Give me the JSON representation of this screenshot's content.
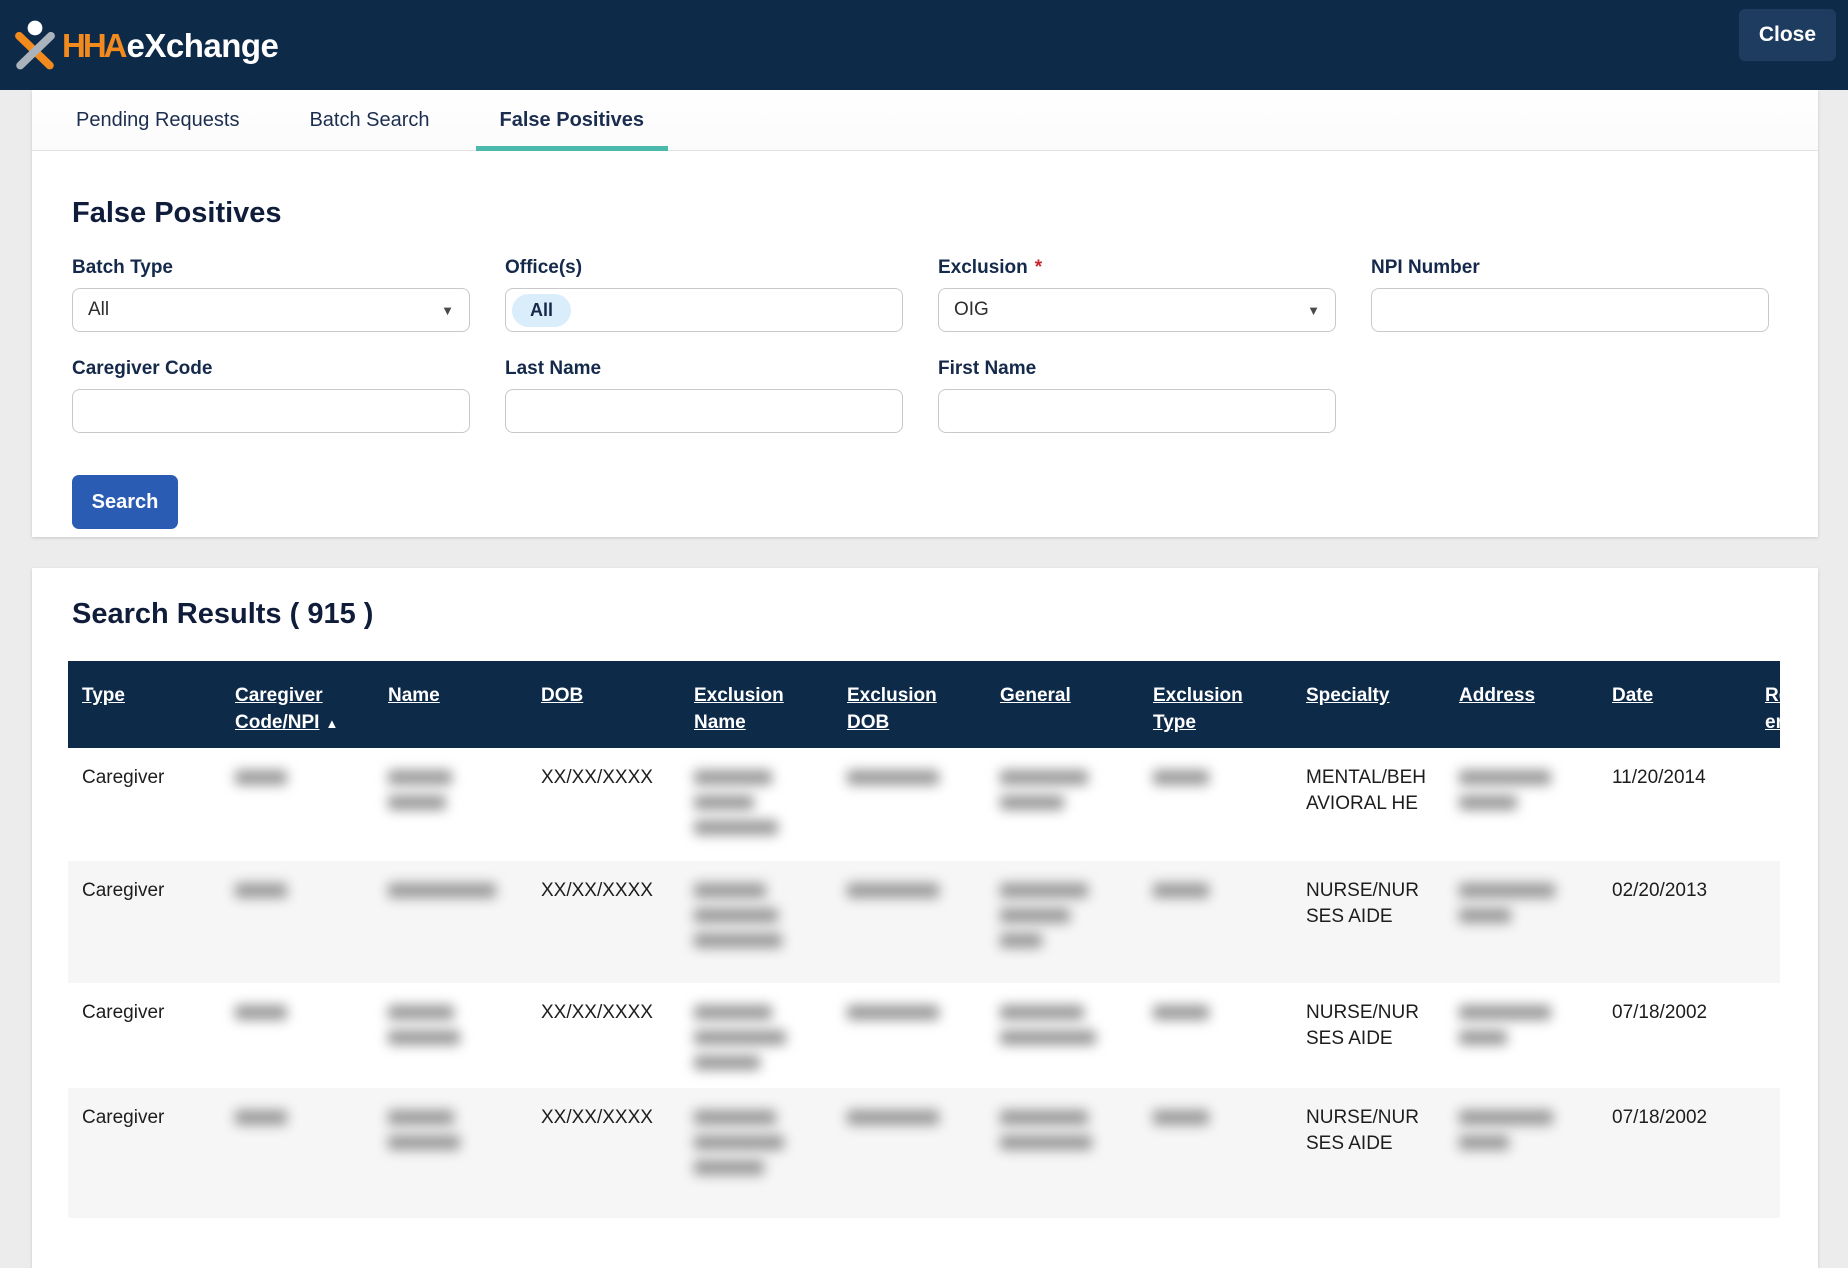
{
  "header": {
    "logo": {
      "hha": "HHA",
      "exchange": "eXchange"
    },
    "close_label": "Close"
  },
  "tabs": [
    {
      "label": "Pending Requests",
      "active": false
    },
    {
      "label": "Batch Search",
      "active": false
    },
    {
      "label": "False Positives",
      "active": true
    }
  ],
  "form": {
    "title": "False Positives",
    "fields": {
      "batch_type": {
        "label": "Batch Type",
        "value": "All"
      },
      "offices": {
        "label": "Office(s)",
        "value": "All"
      },
      "exclusion": {
        "label": "Exclusion",
        "required_mark": "*",
        "value": "OIG"
      },
      "npi": {
        "label": "NPI Number",
        "value": ""
      },
      "caregiver_code": {
        "label": "Caregiver Code",
        "value": ""
      },
      "last_name": {
        "label": "Last Name",
        "value": ""
      },
      "first_name": {
        "label": "First Name",
        "value": ""
      }
    },
    "search_label": "Search"
  },
  "icons": {
    "caret_down": "▼",
    "sort_asc": "▲"
  },
  "results": {
    "title": "Search Results ( 915 )",
    "count": "915",
    "columns": [
      {
        "id": "type",
        "lines": [
          "Type"
        ]
      },
      {
        "id": "caregiver_code_npi",
        "lines": [
          "Caregiver",
          "Code/NPI"
        ],
        "sort": "asc"
      },
      {
        "id": "name",
        "lines": [
          "Name"
        ]
      },
      {
        "id": "dob",
        "lines": [
          "DOB"
        ]
      },
      {
        "id": "exclusion_name",
        "lines": [
          "Exclusion",
          "Name"
        ]
      },
      {
        "id": "exclusion_dob",
        "lines": [
          "Exclusion",
          "DOB"
        ]
      },
      {
        "id": "general",
        "lines": [
          "General"
        ]
      },
      {
        "id": "exclusion_type",
        "lines": [
          "Exclusion",
          "Type"
        ]
      },
      {
        "id": "specialty",
        "lines": [
          "Specialty"
        ]
      },
      {
        "id": "address",
        "lines": [
          "Address"
        ]
      },
      {
        "id": "date",
        "lines": [
          "Date"
        ]
      },
      {
        "id": "record_truncated",
        "lines": [
          "Re",
          "er"
        ]
      }
    ],
    "rows": [
      {
        "type": "Caregiver",
        "caregiver_code_npi": {
          "redacted": true,
          "lines": [
            52
          ]
        },
        "name": {
          "redacted": true,
          "lines": [
            64,
            58
          ]
        },
        "dob": "XX/XX/XXXX",
        "exclusion_name": {
          "redacted": true,
          "lines": [
            78,
            60,
            84
          ]
        },
        "exclusion_dob": {
          "redacted": true,
          "lines": [
            92
          ]
        },
        "general": {
          "redacted": true,
          "lines": [
            88,
            64
          ]
        },
        "exclusion_type": {
          "redacted": true,
          "lines": [
            56
          ]
        },
        "specialty": [
          "MENTAL/BEH",
          "AVIORAL HE"
        ],
        "address": {
          "redacted": true,
          "lines": [
            92,
            58
          ]
        },
        "date": "11/20/2014",
        "record_truncated": ""
      },
      {
        "type": "Caregiver",
        "caregiver_code_npi": {
          "redacted": true,
          "lines": [
            52
          ]
        },
        "name": {
          "redacted": true,
          "lines": [
            108
          ]
        },
        "dob": "XX/XX/XXXX",
        "exclusion_name": {
          "redacted": true,
          "lines": [
            72,
            84,
            88
          ]
        },
        "exclusion_dob": {
          "redacted": true,
          "lines": [
            92
          ]
        },
        "general": {
          "redacted": true,
          "lines": [
            88,
            70,
            42
          ]
        },
        "exclusion_type": {
          "redacted": true,
          "lines": [
            56
          ]
        },
        "specialty": [
          "NURSE/NUR",
          "SES AIDE"
        ],
        "address": {
          "redacted": true,
          "lines": [
            96,
            52
          ]
        },
        "date": "02/20/2013",
        "record_truncated": ""
      },
      {
        "type": "Caregiver",
        "caregiver_code_npi": {
          "redacted": true,
          "lines": [
            52
          ]
        },
        "name": {
          "redacted": true,
          "lines": [
            66,
            72
          ]
        },
        "dob": "XX/XX/XXXX",
        "exclusion_name": {
          "redacted": true,
          "lines": [
            78,
            92,
            66
          ]
        },
        "exclusion_dob": {
          "redacted": true,
          "lines": [
            92
          ]
        },
        "general": {
          "redacted": true,
          "lines": [
            84,
            96
          ]
        },
        "exclusion_type": {
          "redacted": true,
          "lines": [
            56
          ]
        },
        "specialty": [
          "NURSE/NUR",
          "SES AIDE"
        ],
        "address": {
          "redacted": true,
          "lines": [
            92,
            48
          ]
        },
        "date": "07/18/2002",
        "record_truncated": ""
      },
      {
        "type": "Caregiver",
        "caregiver_code_npi": {
          "redacted": true,
          "lines": [
            52
          ]
        },
        "name": {
          "redacted": true,
          "lines": [
            66,
            72
          ]
        },
        "dob": "XX/XX/XXXX",
        "exclusion_name": {
          "redacted": true,
          "lines": [
            82,
            90,
            70
          ]
        },
        "exclusion_dob": {
          "redacted": true,
          "lines": [
            92
          ]
        },
        "general": {
          "redacted": true,
          "lines": [
            88,
            92
          ]
        },
        "exclusion_type": {
          "redacted": true,
          "lines": [
            56
          ]
        },
        "specialty": [
          "NURSE/NUR",
          "SES AIDE"
        ],
        "address": {
          "redacted": true,
          "lines": [
            94,
            50
          ]
        },
        "date": "07/18/2002",
        "record_truncated": ""
      }
    ]
  },
  "colors": {
    "header_navy": "#0e2a49",
    "teal_accent": "#4ab9ac",
    "button_blue": "#2b5cb4",
    "office_tag_blue": "#d9edfa",
    "required_red": "#c9252b",
    "logo_orange": "#f28a1e",
    "row_alt_gray": "#f6f6f6"
  }
}
